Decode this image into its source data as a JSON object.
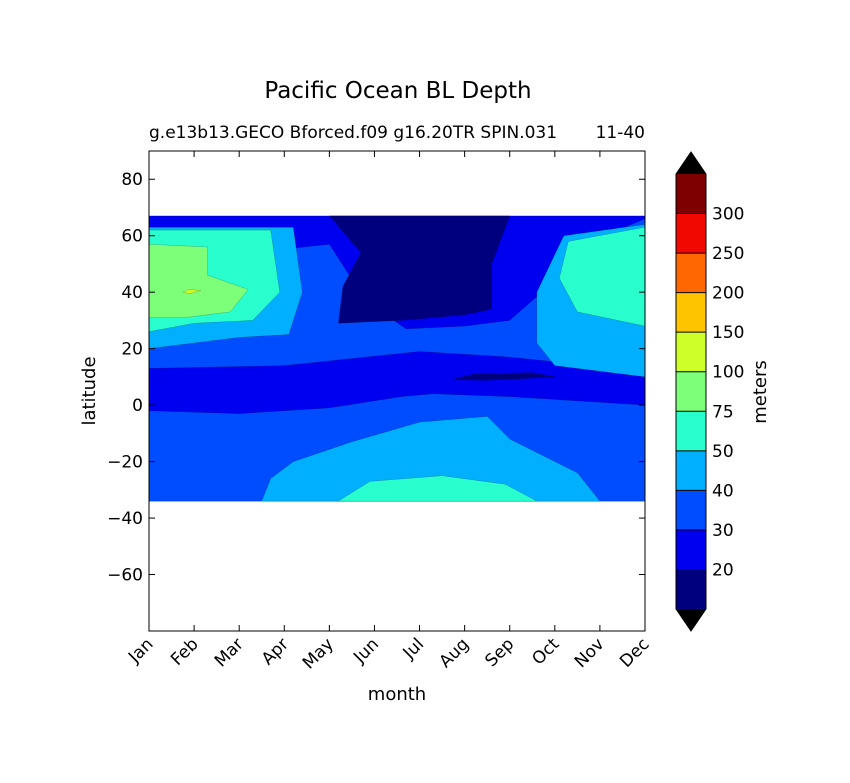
{
  "chart_data": {
    "type": "heatmap",
    "subtype": "filled-contour",
    "title": "Pacific Ocean BL Depth",
    "subtitle_left": "g.e13b13.GECO Bforced.f09 g16.20TR SPIN.031",
    "subtitle_right": "11-40",
    "xlabel": "month",
    "ylabel": "latitude",
    "x_ticks": [
      "Jan",
      "Feb",
      "Mar",
      "Apr",
      "May",
      "Jun",
      "Jul",
      "Aug",
      "Sep",
      "Oct",
      "Nov",
      "Dec"
    ],
    "xlim": [
      0,
      11
    ],
    "ylim": [
      -80,
      90
    ],
    "y_ticks": [
      80,
      60,
      40,
      20,
      0,
      -20,
      -40,
      -60
    ],
    "y_tick_labels": [
      "80",
      "60",
      "40",
      "20",
      "0",
      "−20",
      "−40",
      "−60"
    ],
    "data_lat_range": [
      -34,
      67
    ],
    "colorbar": {
      "label": "meters",
      "extend": "both",
      "levels": [
        20,
        30,
        40,
        50,
        75,
        100,
        150,
        200,
        250,
        300
      ],
      "level_labels": [
        "20",
        "30",
        "40",
        "50",
        "75",
        "100",
        "150",
        "200",
        "250",
        "300"
      ],
      "colors": [
        "#00007f",
        "#0000f1",
        "#004cff",
        "#00b0ff",
        "#29ffce",
        "#7dff7a",
        "#ceff29",
        "#ffc400",
        "#ff6800",
        "#f10800",
        "#7f0000"
      ],
      "under_color": "#000000",
      "over_color": "#000000"
    },
    "regions": [
      {
        "level": 1,
        "desc": "background 20-30 m",
        "points": [
          [
            0,
            67
          ],
          [
            11,
            67
          ],
          [
            11,
            -34
          ],
          [
            0,
            -34
          ]
        ]
      },
      {
        "level": 2,
        "desc": "southern 30-40 m",
        "points": [
          [
            0,
            -2
          ],
          [
            2,
            -3
          ],
          [
            4,
            -1
          ],
          [
            5.6,
            3
          ],
          [
            6.3,
            4
          ],
          [
            8,
            3
          ],
          [
            10,
            1
          ],
          [
            11,
            0
          ],
          [
            11,
            -34
          ],
          [
            0,
            -34
          ]
        ]
      },
      {
        "level": 2,
        "desc": "northern band 30-40 m",
        "points": [
          [
            0,
            50
          ],
          [
            4,
            57
          ],
          [
            4.8,
            37
          ],
          [
            5.7,
            27
          ],
          [
            7,
            28
          ],
          [
            8,
            30
          ],
          [
            9,
            44
          ],
          [
            9.8,
            58
          ],
          [
            11,
            66
          ],
          [
            11,
            12
          ],
          [
            8,
            17
          ],
          [
            6,
            19
          ],
          [
            3,
            14
          ],
          [
            0,
            13
          ]
        ]
      },
      {
        "level": 3,
        "desc": "southern 40-50 m",
        "points": [
          [
            2.5,
            -34
          ],
          [
            2.7,
            -26
          ],
          [
            3.2,
            -20
          ],
          [
            4.5,
            -13
          ],
          [
            6,
            -6
          ],
          [
            7.5,
            -4
          ],
          [
            8,
            -12
          ],
          [
            9.5,
            -24
          ],
          [
            10,
            -34
          ]
        ]
      },
      {
        "level": 3,
        "desc": "northern 40-50 m",
        "points": [
          [
            0,
            18
          ],
          [
            0,
            63
          ],
          [
            3.2,
            63
          ],
          [
            3.4,
            40
          ],
          [
            3.1,
            25
          ],
          [
            2,
            24
          ],
          [
            0,
            20
          ]
        ]
      },
      {
        "level": 3,
        "desc": "northern east 40-50 m",
        "points": [
          [
            11,
            10
          ],
          [
            9,
            14
          ],
          [
            8.6,
            22
          ],
          [
            8.6,
            40
          ],
          [
            9.2,
            60
          ],
          [
            11,
            64
          ]
        ]
      },
      {
        "level": 4,
        "desc": "southern 50-75 m",
        "points": [
          [
            4.2,
            -34
          ],
          [
            4.9,
            -27
          ],
          [
            6.5,
            -25
          ],
          [
            7.9,
            -28
          ],
          [
            8.6,
            -34
          ]
        ]
      },
      {
        "level": 4,
        "desc": "northern west 50-75 m",
        "points": [
          [
            0,
            26
          ],
          [
            0,
            62
          ],
          [
            2.7,
            62
          ],
          [
            2.9,
            40
          ],
          [
            2.3,
            30
          ],
          [
            1,
            29
          ]
        ]
      },
      {
        "level": 4,
        "desc": "northern east 50-75 m",
        "points": [
          [
            11,
            28
          ],
          [
            9.5,
            33
          ],
          [
            9.1,
            45
          ],
          [
            9.3,
            58
          ],
          [
            11,
            63
          ]
        ]
      },
      {
        "level": 5,
        "desc": "northern west 75-100 m",
        "points": [
          [
            0,
            31
          ],
          [
            0,
            57
          ],
          [
            1.3,
            56
          ],
          [
            1.3,
            46
          ],
          [
            2.2,
            41
          ],
          [
            1.8,
            33
          ],
          [
            0.8,
            31
          ]
        ]
      },
      {
        "level": 6,
        "desc": "small 100-150 m",
        "points": [
          [
            0.75,
            40
          ],
          [
            0.9,
            41
          ],
          [
            1.15,
            40.5
          ],
          [
            0.9,
            39.5
          ]
        ]
      },
      {
        "level": 0,
        "desc": "shallow summer <20 m",
        "points": [
          [
            4,
            67
          ],
          [
            8,
            67
          ],
          [
            7.6,
            50
          ],
          [
            7.6,
            34
          ],
          [
            7,
            32
          ],
          [
            5.6,
            30
          ],
          [
            4.2,
            29
          ],
          [
            4.3,
            42
          ],
          [
            4.7,
            54
          ]
        ]
      },
      {
        "level": 0,
        "desc": "shallow tropical <20 m",
        "points": [
          [
            6.7,
            9
          ],
          [
            7.2,
            11
          ],
          [
            8.5,
            11.5
          ],
          [
            9,
            10
          ],
          [
            7.5,
            8.8
          ]
        ]
      }
    ]
  }
}
